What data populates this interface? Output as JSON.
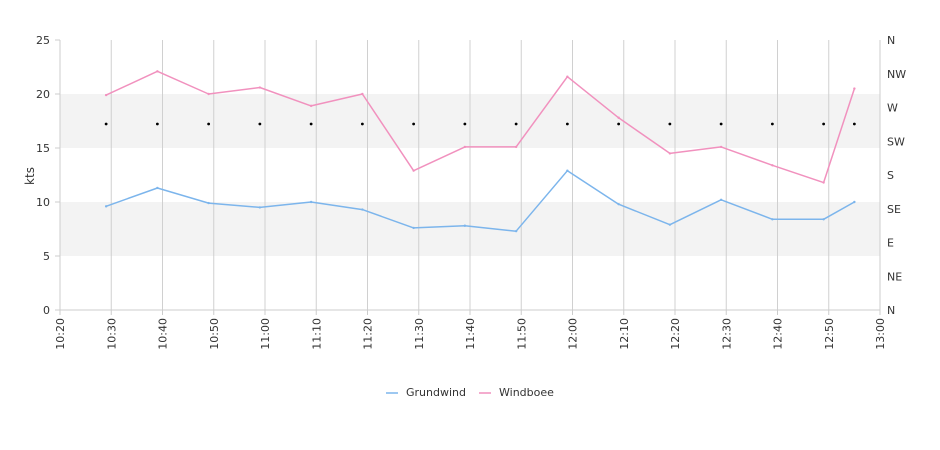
{
  "chart_data": {
    "type": "line",
    "ylabel": "kts",
    "ylim": [
      0,
      25
    ],
    "y_ticks": [
      "0",
      "5",
      "10",
      "15",
      "20",
      "25"
    ],
    "x_ticks": [
      "10:20",
      "10:30",
      "10:40",
      "10:50",
      "11:00",
      "11:10",
      "11:20",
      "11:30",
      "11:40",
      "11:50",
      "12:00",
      "12:10",
      "12:20",
      "12:30",
      "12:40",
      "12:50",
      "13:00"
    ],
    "xlim": [
      "10:20",
      "13:00"
    ],
    "right_axis_ticks": [
      "N",
      "NE",
      "E",
      "SE",
      "S",
      "SW",
      "W",
      "NW",
      "N"
    ],
    "bands": [
      [
        5,
        10
      ],
      [
        15,
        20
      ]
    ],
    "grid": "vertical",
    "legend_position": "bottom-center",
    "x": [
      "10:29",
      "10:39",
      "10:49",
      "10:59",
      "11:09",
      "11:19",
      "11:29",
      "11:39",
      "11:49",
      "11:59",
      "12:09",
      "12:19",
      "12:29",
      "12:39",
      "12:49",
      "12:55"
    ],
    "series": [
      {
        "name": "Grundwind",
        "color": "#7cb5ec",
        "values": [
          9.6,
          11.3,
          9.9,
          9.5,
          10.0,
          9.3,
          7.6,
          7.8,
          7.3,
          12.9,
          9.8,
          7.9,
          10.2,
          8.4,
          8.4,
          10.0
        ]
      },
      {
        "name": "Windboee",
        "color": "#f191be",
        "values": [
          19.9,
          22.1,
          20.0,
          20.6,
          18.9,
          20.0,
          12.9,
          15.1,
          15.1,
          21.6,
          17.8,
          14.5,
          15.1,
          13.4,
          11.8,
          20.5
        ]
      }
    ],
    "direction": {
      "x": [
        "10:29",
        "10:39",
        "10:49",
        "10:59",
        "11:09",
        "11:19",
        "11:29",
        "11:39",
        "11:49",
        "11:59",
        "12:09",
        "12:19",
        "12:29",
        "12:39",
        "12:49",
        "12:55"
      ],
      "degrees": [
        248,
        248,
        248,
        248,
        248,
        248,
        248,
        248,
        248,
        248,
        248,
        248,
        248,
        248,
        248,
        248
      ]
    }
  }
}
